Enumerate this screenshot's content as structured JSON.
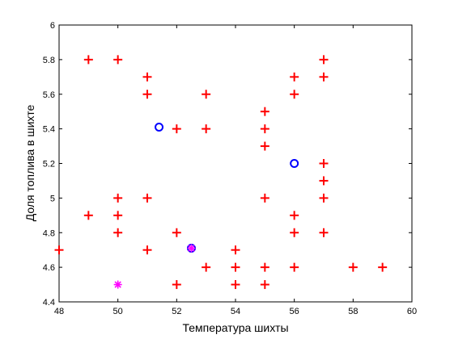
{
  "chart_data": {
    "type": "scatter",
    "title": "",
    "xlabel": "Температура шихты",
    "ylabel": "Доля топлива в шихте",
    "xlim": [
      48,
      60
    ],
    "ylim": [
      4.4,
      6
    ],
    "xticks": [
      "48",
      "50",
      "52",
      "54",
      "56",
      "58",
      "60"
    ],
    "yticks": [
      "4.4",
      "4.6",
      "4.8",
      "5",
      "5.2",
      "5.4",
      "5.6",
      "5.8",
      "6"
    ],
    "grid": false,
    "legend": "none",
    "series": [
      {
        "marker": "plus",
        "color": "#ff0000",
        "points": [
          [
            48,
            4.7
          ],
          [
            49,
            5.8
          ],
          [
            49,
            4.9
          ],
          [
            50,
            5.8
          ],
          [
            50,
            5.0
          ],
          [
            50,
            4.9
          ],
          [
            50,
            4.8
          ],
          [
            51,
            5.7
          ],
          [
            51,
            5.6
          ],
          [
            51,
            5.0
          ],
          [
            51,
            4.7
          ],
          [
            52,
            5.4
          ],
          [
            52,
            4.8
          ],
          [
            52,
            4.5
          ],
          [
            53,
            5.6
          ],
          [
            53,
            5.4
          ],
          [
            53,
            4.6
          ],
          [
            54,
            4.7
          ],
          [
            54,
            4.6
          ],
          [
            54,
            4.5
          ],
          [
            55,
            5.5
          ],
          [
            55,
            5.4
          ],
          [
            55,
            5.3
          ],
          [
            55,
            5.0
          ],
          [
            55,
            4.6
          ],
          [
            55,
            4.5
          ],
          [
            56,
            5.7
          ],
          [
            56,
            5.6
          ],
          [
            56,
            4.9
          ],
          [
            56,
            4.8
          ],
          [
            56,
            4.6
          ],
          [
            57,
            5.8
          ],
          [
            57,
            5.7
          ],
          [
            57,
            5.2
          ],
          [
            57,
            5.1
          ],
          [
            57,
            5.0
          ],
          [
            57,
            4.8
          ],
          [
            58,
            4.6
          ],
          [
            59,
            4.6
          ]
        ]
      },
      {
        "marker": "circle",
        "color": "#0000ff",
        "points": [
          [
            51.4,
            5.41
          ],
          [
            52.5,
            4.71
          ],
          [
            56,
            5.2
          ]
        ]
      },
      {
        "marker": "star",
        "color": "#ff00ff",
        "points": [
          [
            50,
            4.5
          ],
          [
            52.5,
            4.71
          ]
        ]
      }
    ]
  }
}
